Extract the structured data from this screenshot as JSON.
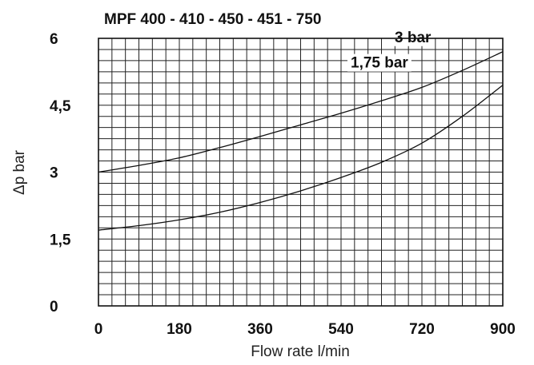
{
  "chart_data": {
    "type": "line",
    "title": "MPF 400 - 410 - 450 - 451 - 750",
    "xlabel": "Flow rate l/min",
    "ylabel": "Δp bar",
    "xlim": [
      0,
      900
    ],
    "ylim": [
      0,
      6
    ],
    "x_ticks": [
      "0",
      "180",
      "360",
      "540",
      "720",
      "900"
    ],
    "y_ticks": [
      "0",
      "1,5",
      "3",
      "4,5",
      "6"
    ],
    "grid": true,
    "series": [
      {
        "name": "3 bar",
        "x": [
          0,
          90,
          180,
          270,
          360,
          450,
          540,
          630,
          720,
          810,
          900
        ],
        "y": [
          3.0,
          3.15,
          3.32,
          3.55,
          3.8,
          4.06,
          4.32,
          4.6,
          4.9,
          5.28,
          5.7
        ]
      },
      {
        "name": "1,75 bar",
        "x": [
          0,
          90,
          180,
          270,
          360,
          450,
          540,
          630,
          720,
          810,
          900
        ],
        "y": [
          1.7,
          1.8,
          1.93,
          2.1,
          2.32,
          2.58,
          2.88,
          3.22,
          3.65,
          4.25,
          4.95
        ]
      }
    ]
  }
}
